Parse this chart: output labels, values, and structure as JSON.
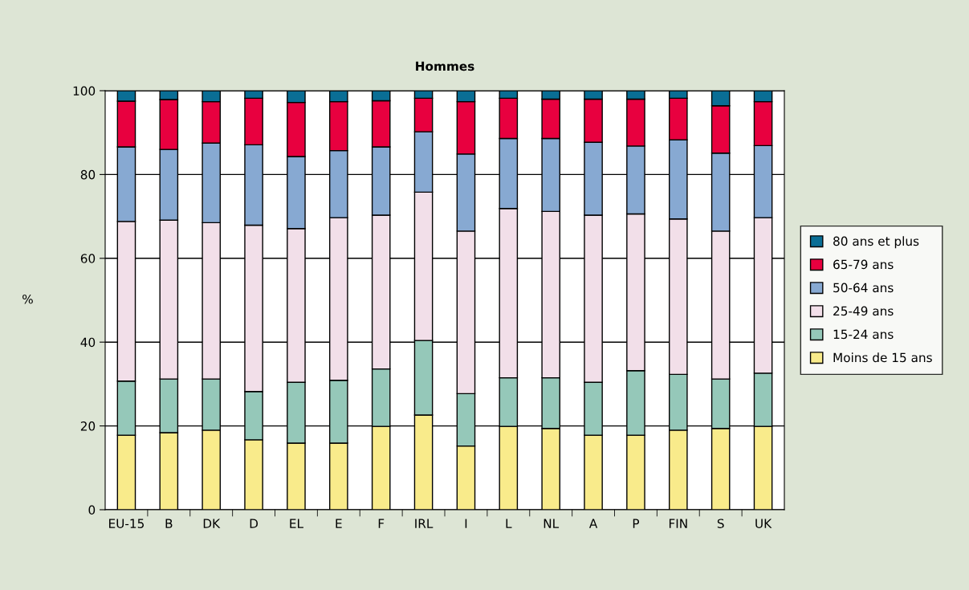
{
  "chart_data": {
    "type": "bar",
    "title": "Hommes",
    "ylabel": "%",
    "stacked": true,
    "categories": [
      "EU-15",
      "B",
      "DK",
      "D",
      "EL",
      "E",
      "F",
      "IRL",
      "I",
      "L",
      "NL",
      "A",
      "P",
      "FIN",
      "S",
      "UK"
    ],
    "series": [
      {
        "name": "Moins de 15 ans",
        "color": "#f9eb8b",
        "values": [
          17.8,
          18.4,
          19.0,
          16.7,
          15.9,
          15.9,
          19.9,
          22.6,
          15.2,
          19.9,
          19.4,
          17.8,
          17.8,
          19.0,
          19.4,
          19.9
        ]
      },
      {
        "name": "15-24 ans",
        "color": "#95c8b9",
        "values": [
          12.9,
          12.8,
          12.2,
          11.5,
          14.5,
          15.0,
          13.7,
          17.8,
          12.5,
          11.6,
          12.1,
          12.6,
          15.4,
          13.3,
          11.8,
          12.7
        ]
      },
      {
        "name": "25-49 ans",
        "color": "#f2dfe9",
        "values": [
          38.1,
          37.9,
          37.3,
          39.7,
          36.7,
          38.8,
          36.7,
          35.4,
          38.8,
          40.4,
          39.7,
          39.9,
          37.4,
          37.1,
          35.3,
          37.1
        ]
      },
      {
        "name": "50-64 ans",
        "color": "#87a9d2",
        "values": [
          17.8,
          16.9,
          19.0,
          19.2,
          17.2,
          16.0,
          16.3,
          14.4,
          18.4,
          16.7,
          17.4,
          17.4,
          16.2,
          18.9,
          18.6,
          17.2
        ]
      },
      {
        "name": "65-79 ans",
        "color": "#e8003f",
        "values": [
          10.9,
          11.9,
          9.9,
          11.1,
          12.9,
          11.7,
          11.0,
          8.0,
          12.5,
          9.6,
          9.4,
          10.3,
          11.2,
          9.9,
          11.3,
          10.5
        ]
      },
      {
        "name": "80 ans et plus",
        "color": "#0a6e95",
        "values": [
          2.5,
          2.1,
          2.6,
          1.8,
          2.8,
          2.6,
          2.4,
          1.8,
          2.6,
          1.8,
          2.0,
          2.0,
          2.0,
          1.8,
          3.6,
          2.6
        ]
      }
    ],
    "ylim": [
      0,
      100
    ],
    "yticks": [
      0,
      20,
      40,
      60,
      80,
      100
    ],
    "grid": "y",
    "legend": "right"
  }
}
